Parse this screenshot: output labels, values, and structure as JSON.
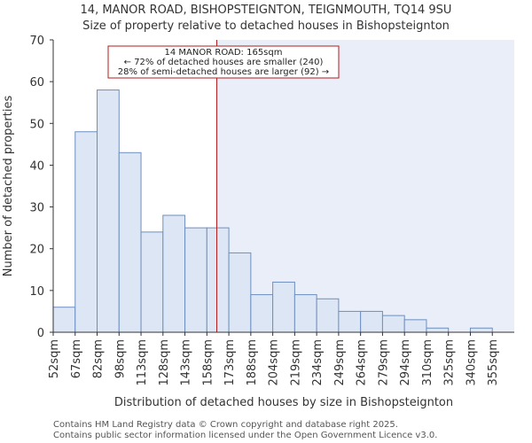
{
  "chart_data": {
    "type": "bar",
    "title": "14, MANOR ROAD, BISHOPSTEIGNTON, TEIGNMOUTH, TQ14 9SU",
    "subtitle": "Size of property relative to detached houses in Bishopsteignton",
    "xlabel": "Distribution of detached houses by size in Bishopsteignton",
    "ylabel": "Number of detached properties",
    "ylim": [
      0,
      70
    ],
    "yticks": [
      0,
      10,
      20,
      30,
      40,
      50,
      60,
      70
    ],
    "categories": [
      "52sqm",
      "67sqm",
      "82sqm",
      "98sqm",
      "113sqm",
      "128sqm",
      "143sqm",
      "158sqm",
      "173sqm",
      "188sqm",
      "204sqm",
      "219sqm",
      "234sqm",
      "249sqm",
      "264sqm",
      "279sqm",
      "294sqm",
      "310sqm",
      "325sqm",
      "340sqm",
      "355sqm"
    ],
    "values": [
      6,
      48,
      58,
      43,
      24,
      28,
      25,
      25,
      19,
      9,
      12,
      9,
      8,
      5,
      5,
      4,
      3,
      1,
      0,
      1,
      0
    ],
    "marker_value_sqm": 165,
    "marker_bin_position": 7.45,
    "annotation": {
      "line1": "14 MANOR ROAD: 165sqm",
      "line2": "← 72% of detached houses are smaller (240)",
      "line3": "28% of semi-detached houses are larger (92) →"
    },
    "colors": {
      "bar_fill": "#dce6f4",
      "bar_stroke": "#6e8fc0",
      "marker": "#b31b1b",
      "highlight_bg": "#e9eef8"
    }
  },
  "footer": {
    "line1": "Contains HM Land Registry data © Crown copyright and database right 2025.",
    "line2": "Contains public sector information licensed under the Open Government Licence v3.0."
  }
}
